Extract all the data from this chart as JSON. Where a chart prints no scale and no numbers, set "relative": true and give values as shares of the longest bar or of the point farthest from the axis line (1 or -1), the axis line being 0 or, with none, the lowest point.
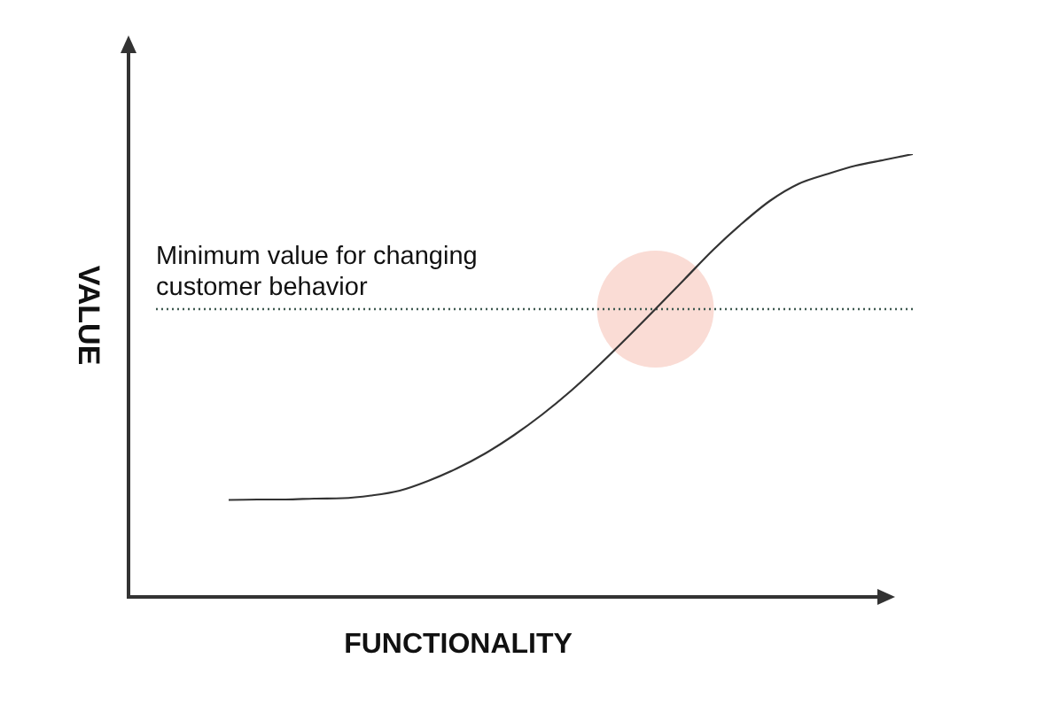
{
  "chart_data": {
    "type": "line",
    "xlabel": "FUNCTIONALITY",
    "ylabel": "VALUE",
    "relative": true,
    "tick_labels": false,
    "marker": "none",
    "categories": [
      null,
      null,
      null,
      null,
      null,
      null,
      null,
      null,
      null,
      null,
      null,
      null,
      null,
      null,
      null,
      null,
      null,
      null,
      null,
      null,
      null,
      null,
      null,
      null,
      null
    ],
    "series": [
      {
        "color": "#333333",
        "values": [
          0.219,
          0.22,
          0.22,
          0.222,
          0.223,
          0.229,
          0.24,
          0.262,
          0.29,
          0.324,
          0.365,
          0.412,
          0.465,
          0.524,
          0.587,
          0.652,
          0.718,
          0.784,
          0.843,
          0.895,
          0.933,
          0.955,
          0.974,
          0.987,
          1.0
        ]
      }
    ],
    "ref_lines": [
      {
        "axis": "y",
        "value": 0.65,
        "label": "Minimum value for changing customer behavior",
        "color": "#3f5a50",
        "line_style": "dotted"
      }
    ]
  }
}
